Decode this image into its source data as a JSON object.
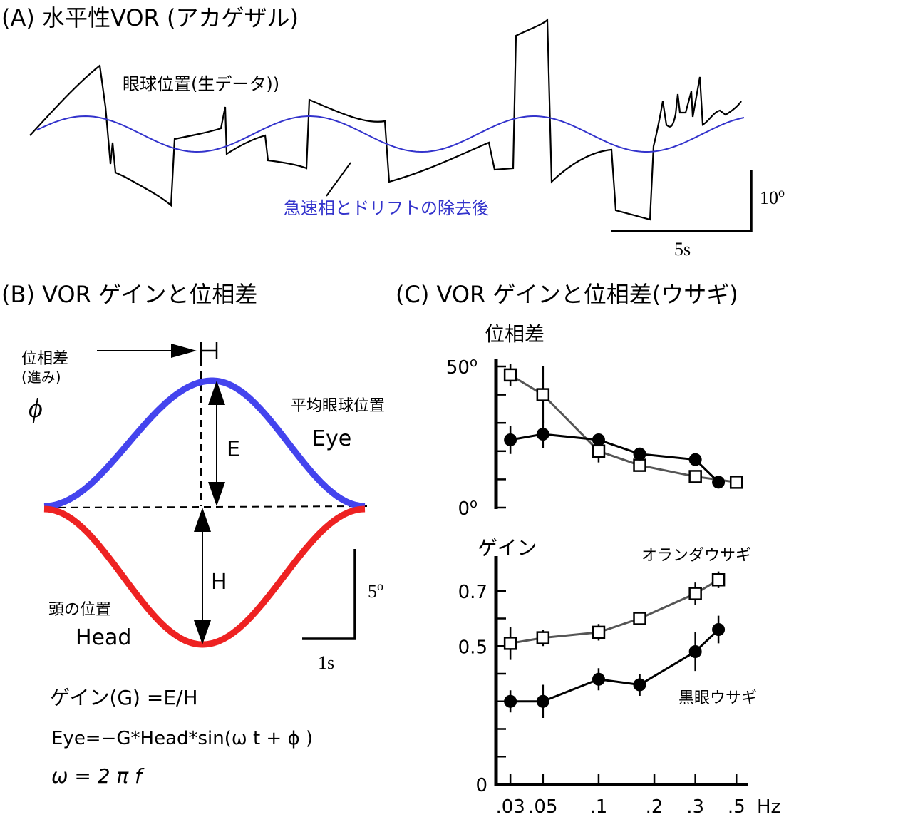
{
  "panel_a": {
    "title": "(A) 水平性VOR (アカゲザル)",
    "raw_label": "眼球位置(生データ))",
    "processed_label": "急速相とドリフトの除去後",
    "scale_v": "10",
    "scale_v_unit": "o",
    "scale_h": "5s",
    "colors": {
      "raw": "#000000",
      "processed": "#3333cc"
    }
  },
  "panel_b": {
    "title": "(B) VOR ゲインと位相差",
    "phase_label_1": "位相差",
    "phase_label_2": "(進み)",
    "phi": "ϕ",
    "eye_label_jp": "平均眼球位置",
    "eye_label_en": "Eye",
    "head_label_jp": "頭の位置",
    "head_label_en": "Head",
    "e_label": "E",
    "h_label": "H",
    "scale_v": "5",
    "scale_v_unit": "o",
    "scale_h": "1s",
    "formula_gain": "ゲイン(G) =E/H",
    "formula_eye": "Eye=−G*Head*sin(ω t + ϕ )",
    "formula_omega": "ω = 2 π f",
    "colors": {
      "eye": "#4444ee",
      "head": "#ee2222"
    }
  },
  "panel_c": {
    "title": "(C) VOR ゲインと位相差(ウサギ)",
    "hz_label": "Hz"
  },
  "chart_data": [
    {
      "type": "line",
      "name": "phase",
      "ylabel": "位相差",
      "ylim": [
        0,
        50
      ],
      "ytick_labels": [
        {
          "v": 50,
          "t": "50",
          "sup": "o"
        },
        {
          "v": 0,
          "t": "0",
          "sup": "o"
        }
      ],
      "yminor": [
        10,
        20,
        30,
        40
      ],
      "series": [
        {
          "marker": "square",
          "color": "#555555",
          "x": [
            0.03,
            0.045,
            0.09,
            0.15,
            0.3,
            0.5
          ],
          "y": [
            47,
            40,
            20,
            15,
            11,
            9
          ],
          "err": [
            4,
            10,
            4,
            1,
            2,
            2
          ]
        },
        {
          "marker": "circle",
          "color": "#000000",
          "x": [
            0.03,
            0.045,
            0.09,
            0.15,
            0.3,
            0.4
          ],
          "y": [
            24,
            26,
            24,
            19,
            17,
            9
          ],
          "err": [
            5,
            5,
            2,
            2,
            2,
            1
          ]
        }
      ]
    },
    {
      "type": "line",
      "name": "gain",
      "ylabel": "ゲイン",
      "ylim": [
        0,
        0.8
      ],
      "ytick_labels": [
        {
          "v": 0.7,
          "t": "0.7"
        },
        {
          "v": 0.5,
          "t": "0.5"
        },
        {
          "v": 0,
          "t": "0"
        }
      ],
      "yminor": [
        0.1,
        0.2,
        0.3,
        0.4,
        0.6
      ],
      "xtick_labels": [
        ".03",
        ".05",
        ".1",
        ".2",
        ".3",
        ".5"
      ],
      "xtick_values": [
        0.03,
        0.045,
        0.09,
        0.18,
        0.3,
        0.5
      ],
      "series": [
        {
          "name": "オランダウサギ",
          "marker": "square",
          "color": "#555555",
          "x": [
            0.03,
            0.045,
            0.09,
            0.15,
            0.3,
            0.4
          ],
          "y": [
            0.51,
            0.53,
            0.55,
            0.6,
            0.69,
            0.74
          ],
          "err": [
            0.06,
            0.03,
            0.03,
            0.01,
            0.04,
            0.03
          ]
        },
        {
          "name": "黒眼ウサギ",
          "marker": "circle",
          "color": "#000000",
          "x": [
            0.03,
            0.045,
            0.09,
            0.15,
            0.3,
            0.4
          ],
          "y": [
            0.3,
            0.3,
            0.38,
            0.36,
            0.48,
            0.56
          ],
          "err": [
            0.04,
            0.06,
            0.04,
            0.04,
            0.07,
            0.05
          ]
        }
      ]
    }
  ]
}
